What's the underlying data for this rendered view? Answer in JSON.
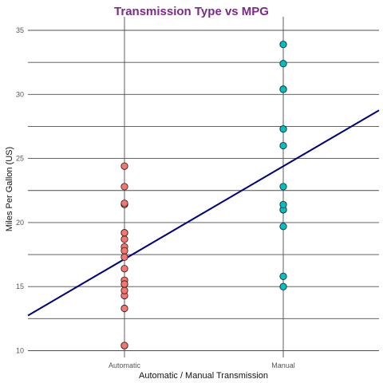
{
  "chart_data": {
    "type": "scatter",
    "title": "Transmission Type vs MPG",
    "xlabel": "Automatic / Manual Transmission",
    "ylabel": "Miles Per Gallon (US)",
    "categories": [
      "Automatic",
      "Manual"
    ],
    "ylim": [
      10,
      35
    ],
    "y_ticks": [
      10,
      15,
      20,
      25,
      30,
      35
    ],
    "grid": true,
    "series": [
      {
        "category": "Automatic",
        "color": "#f8766d",
        "values": [
          21.4,
          18.7,
          18.1,
          14.3,
          24.4,
          22.8,
          19.2,
          17.8,
          16.4,
          17.3,
          15.2,
          10.4,
          10.4,
          14.7,
          21.5,
          15.5,
          15.2,
          13.3,
          19.2
        ]
      },
      {
        "category": "Manual",
        "color": "#00bfc4",
        "values": [
          21.0,
          21.0,
          22.8,
          32.4,
          30.4,
          33.9,
          27.3,
          26.0,
          30.4,
          15.8,
          19.7,
          15.0,
          21.4
        ]
      }
    ],
    "regression_line": {
      "color": "#000080",
      "intercept": 17.147,
      "slope": 7.245
    },
    "colors": {
      "title": "#7b2a8a",
      "grid": "#4d4d4d",
      "point_outline": "#1a1a1a"
    }
  }
}
